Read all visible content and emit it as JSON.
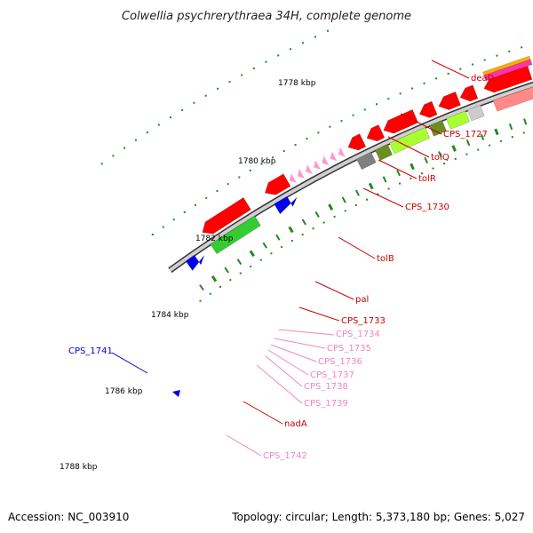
{
  "title": "Colwellia psychrerythraea 34H, complete genome",
  "accession": "Accession: NC_003910",
  "topology": "Topology: circular; Length: 5,373,180 bp; Genes: 5,027",
  "ticks": [
    "1778 kbp",
    "1780 kbp",
    "1782 kbp",
    "1784 kbp",
    "1786 kbp",
    "1788 kbp"
  ],
  "genes": [
    {
      "name": "deaD",
      "color": "#cc0000"
    },
    {
      "name": "CPS_1727",
      "color": "#cc0000"
    },
    {
      "name": "tolQ",
      "color": "#cc0000"
    },
    {
      "name": "tolR",
      "color": "#cc0000"
    },
    {
      "name": "CPS_1730",
      "color": "#cc0000"
    },
    {
      "name": "tolB",
      "color": "#cc0000"
    },
    {
      "name": "pal",
      "color": "#cc0000"
    },
    {
      "name": "CPS_1733",
      "color": "#cc0000"
    },
    {
      "name": "CPS_1734",
      "color": "#ee88bb"
    },
    {
      "name": "CPS_1735",
      "color": "#ee88bb"
    },
    {
      "name": "CPS_1736",
      "color": "#ee88bb"
    },
    {
      "name": "CPS_1737",
      "color": "#ee88bb"
    },
    {
      "name": "CPS_1738",
      "color": "#ee88bb"
    },
    {
      "name": "CPS_1739",
      "color": "#ee88bb"
    },
    {
      "name": "nadA",
      "color": "#cc0000"
    },
    {
      "name": "CPS_1742",
      "color": "#ee88bb"
    },
    {
      "name": "CPS_1741",
      "color": "#0000cc"
    }
  ],
  "colors": {
    "cds_red": "#ff0000",
    "cds_blue": "#0000ee",
    "cog_lime": "#aaff33",
    "cog_olive": "#6b8e23",
    "cog_gray": "#808080",
    "cog_light": "#cccccc",
    "rna_pink": "#ff99cc",
    "backbone": "#888888",
    "tick_green": "#228822"
  }
}
